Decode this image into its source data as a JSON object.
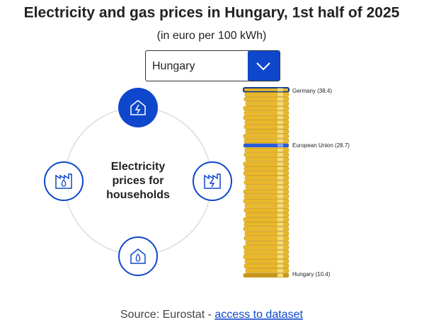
{
  "header": {
    "title": "Electricity and gas prices in Hungary, 1st half of 2025",
    "subtitle": "(in euro per 100 kWh)"
  },
  "selector": {
    "value": "Hungary"
  },
  "wheel": {
    "label": "Electricity prices for households"
  },
  "stack": {
    "labels": [
      "Germany (38.4)",
      "European Union (28.7)",
      "Hungary (10.4)"
    ]
  },
  "footer": {
    "source": "Source: Eurostat - ",
    "link": "access to dataset"
  }
}
